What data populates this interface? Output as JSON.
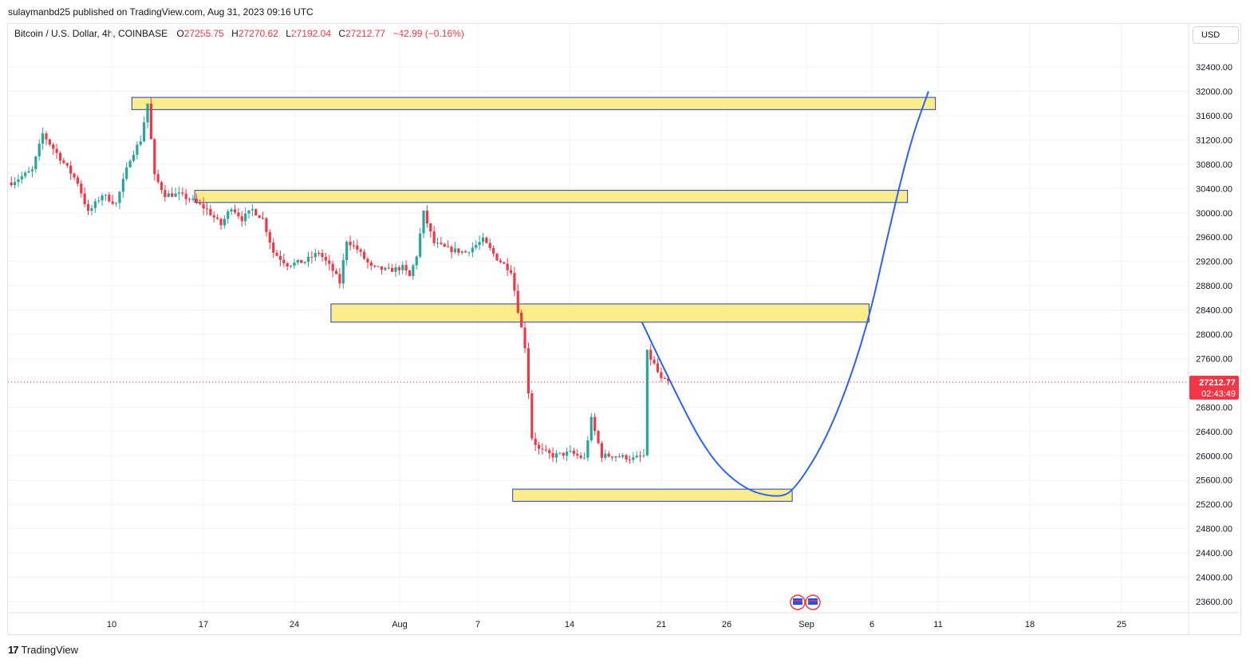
{
  "header": {
    "published": "sulaymanbd25 published on TradingView.com, Aug 31, 2023 09:16 UTC"
  },
  "legend": {
    "symbol": "Bitcoin / U.S. Dollar, 4h, COINBASE",
    "open_label": "O",
    "open": "27255.75",
    "high_label": "H",
    "high": "27270.62",
    "low_label": "L",
    "low": "27192.04",
    "close_label": "C",
    "close": "27212.77",
    "change": "−42.99 (−0.16%)"
  },
  "currency_button": "USD",
  "price_tag": {
    "price": "27212.77",
    "countdown": "02:43:49"
  },
  "footer": {
    "brand": "TradingView"
  },
  "colors": {
    "up": "#26a69a",
    "down": "#f23645",
    "zone_fill": "#fbed8a",
    "zone_border": "#1f3fbf",
    "projection": "#2962ff"
  },
  "chart_data": {
    "type": "candlestick",
    "timeframe": "4h",
    "ylim": [
      23400,
      32800
    ],
    "y_ticks": [
      23600,
      24000,
      24400,
      24800,
      25200,
      25600,
      26000,
      26400,
      26800,
      27200,
      27600,
      28000,
      28400,
      28800,
      29200,
      29600,
      30000,
      30400,
      30800,
      31200,
      31600,
      32000,
      32400
    ],
    "x_labels": [
      "10",
      "17",
      "24",
      "Aug",
      "7",
      "14",
      "21",
      "26",
      "Sep",
      "6",
      "11",
      "18",
      "25"
    ],
    "price_path": [
      [
        0,
        30500
      ],
      [
        6,
        30700
      ],
      [
        9,
        31300
      ],
      [
        14,
        30900
      ],
      [
        19,
        30500
      ],
      [
        22,
        30000
      ],
      [
        26,
        30300
      ],
      [
        30,
        30150
      ],
      [
        34,
        30900
      ],
      [
        37,
        31200
      ],
      [
        39,
        31800
      ],
      [
        41,
        30600
      ],
      [
        44,
        30300
      ],
      [
        48,
        30300
      ],
      [
        52,
        30200
      ],
      [
        56,
        30050
      ],
      [
        60,
        29800
      ],
      [
        63,
        30100
      ],
      [
        66,
        29900
      ],
      [
        69,
        30050
      ],
      [
        72,
        29900
      ],
      [
        75,
        29350
      ],
      [
        79,
        29150
      ],
      [
        84,
        29200
      ],
      [
        88,
        29350
      ],
      [
        92,
        29050
      ],
      [
        94,
        28850
      ],
      [
        96,
        29550
      ],
      [
        99,
        29400
      ],
      [
        103,
        29100
      ],
      [
        108,
        29050
      ],
      [
        112,
        29100
      ],
      [
        114,
        28950
      ],
      [
        116,
        29300
      ],
      [
        118,
        30000
      ],
      [
        121,
        29500
      ],
      [
        125,
        29400
      ],
      [
        130,
        29350
      ],
      [
        135,
        29550
      ],
      [
        139,
        29250
      ],
      [
        143,
        29050
      ],
      [
        145,
        28400
      ],
      [
        147,
        27800
      ],
      [
        149,
        26300
      ],
      [
        151,
        26100
      ],
      [
        155,
        26000
      ],
      [
        160,
        26050
      ],
      [
        164,
        25950
      ],
      [
        166,
        26600
      ],
      [
        169,
        26000
      ],
      [
        173,
        26000
      ],
      [
        178,
        25950
      ],
      [
        181,
        26000
      ],
      [
        182,
        27700
      ],
      [
        184,
        27500
      ],
      [
        186,
        27250
      ],
      [
        188,
        27212
      ]
    ],
    "zones": [
      {
        "from_bar": 35,
        "to_bar": 265,
        "low": 31700,
        "high": 31900
      },
      {
        "from_bar": 53,
        "to_bar": 257,
        "low": 30170,
        "high": 30370
      },
      {
        "from_bar": 92,
        "to_bar": 246,
        "low": 28200,
        "high": 28500
      },
      {
        "from_bar": 144,
        "to_bar": 224,
        "low": 25250,
        "high": 25450
      }
    ],
    "projection": [
      [
        181,
        28200
      ],
      [
        190,
        27100
      ],
      [
        200,
        26000
      ],
      [
        210,
        25450
      ],
      [
        220,
        25300
      ],
      [
        225,
        25450
      ],
      [
        235,
        26400
      ],
      [
        245,
        28000
      ],
      [
        252,
        29800
      ],
      [
        258,
        31200
      ],
      [
        263,
        32000
      ]
    ],
    "current_price": 27212.77
  }
}
